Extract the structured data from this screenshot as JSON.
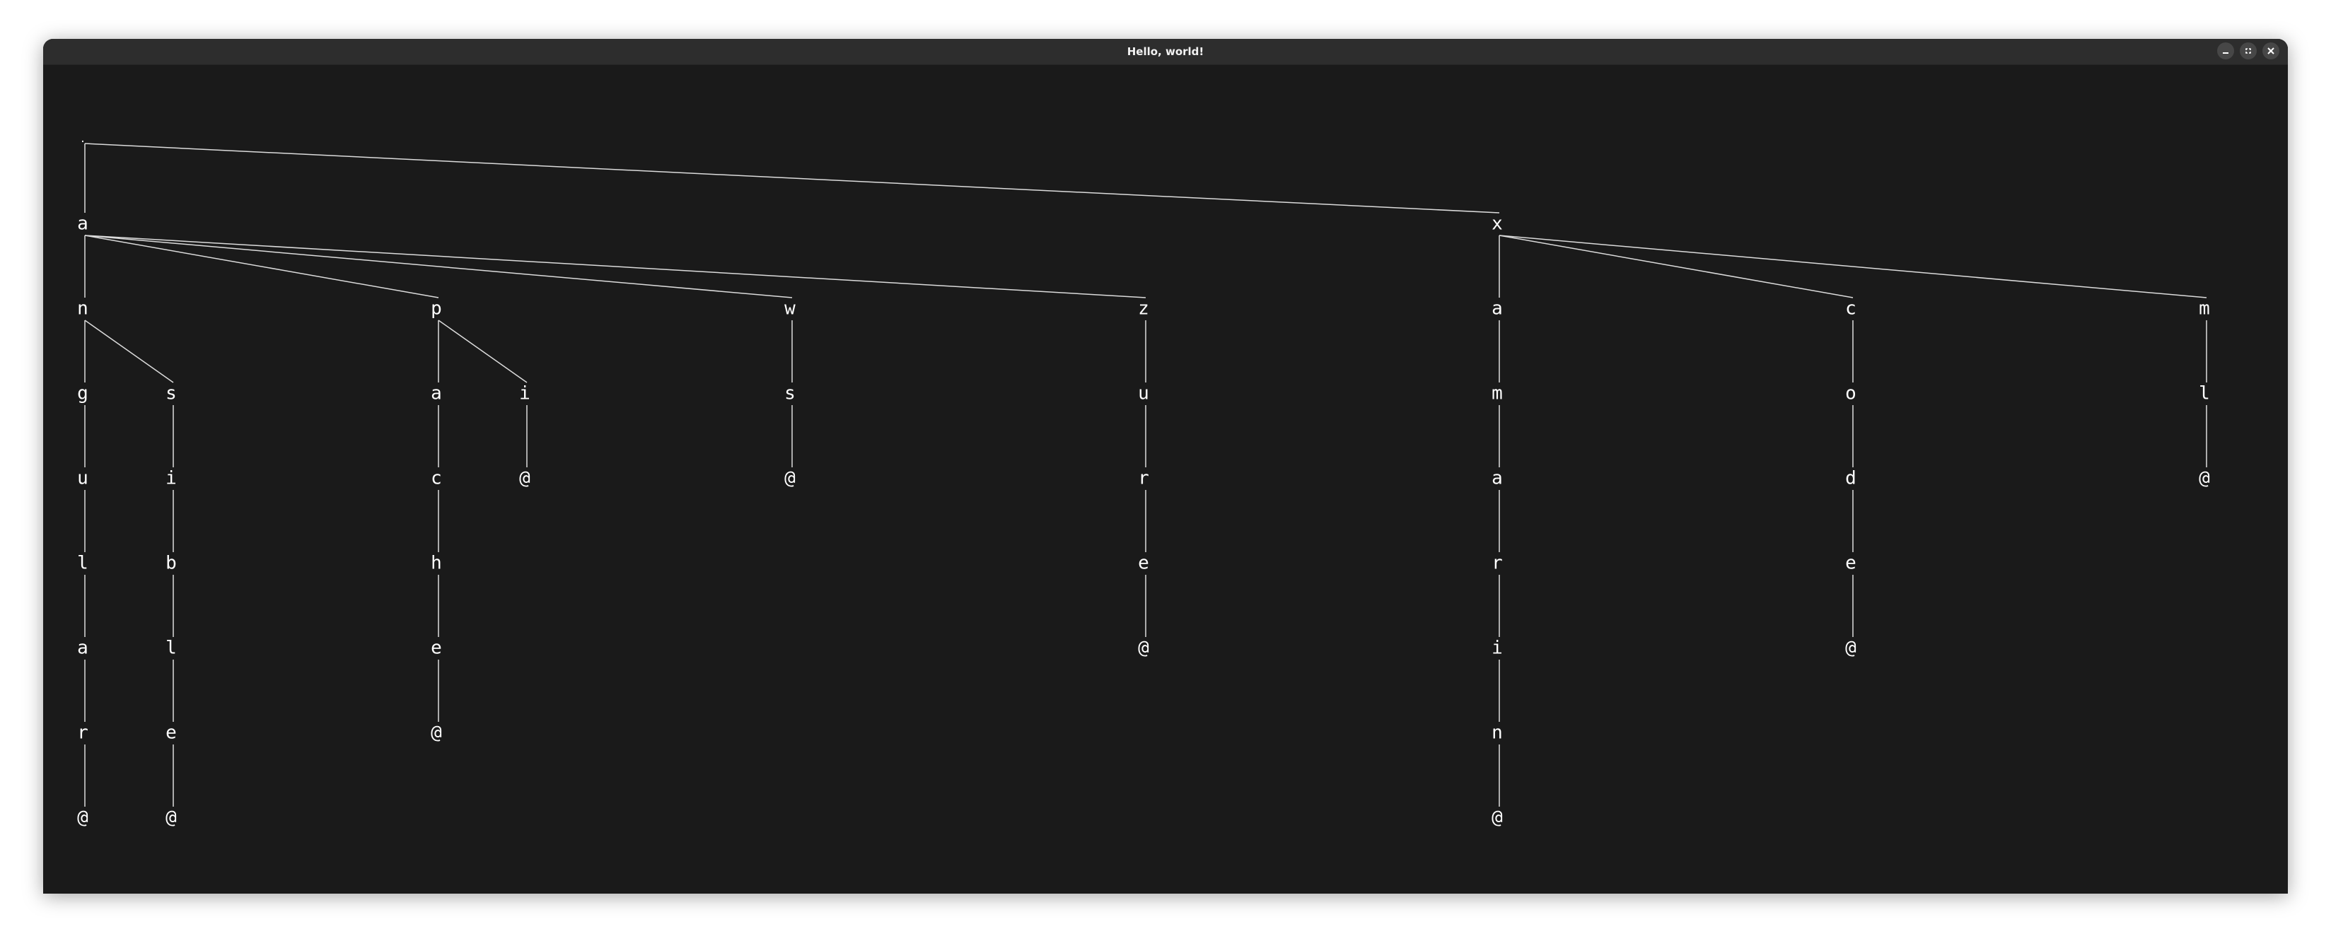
{
  "window": {
    "title": "Hello, world!",
    "controls": [
      "minimize-icon",
      "maximize-icon",
      "close-icon"
    ]
  },
  "tree": {
    "root": ".",
    "words": [
      "angular@",
      "ansible@",
      "apache@",
      "api@",
      "aws@",
      "azure@",
      "xamarin@",
      "xcode@",
      "xml@"
    ],
    "colors": {
      "background": "#1a1a1a",
      "titlebar": "#2d2d2d",
      "text": "#ffffff",
      "edge": "#dcdcdc"
    }
  }
}
